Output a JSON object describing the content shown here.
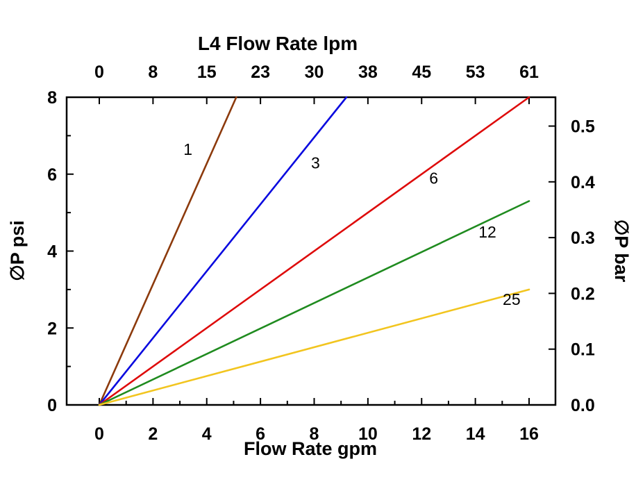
{
  "chart_data": {
    "type": "line",
    "title": "L4  Flow Rate lpm",
    "xlabel": "Flow Rate gpm",
    "ylabel_left": "∅P psi",
    "ylabel_right": "∅P bar",
    "x_unit_bottom": "gpm",
    "x_unit_top": "lpm",
    "xlim": [
      0,
      16
    ],
    "ylim_psi": [
      0,
      8
    ],
    "grid": false,
    "bottom_ticks_gpm": [
      0,
      2,
      4,
      6,
      8,
      10,
      12,
      14,
      16
    ],
    "bottom_minor_ticks_gpm": [
      1,
      3,
      5,
      7,
      9,
      11,
      13,
      15
    ],
    "top_ticks_lpm": [
      {
        "label": "0",
        "gpm": 0
      },
      {
        "label": "8",
        "gpm": 2
      },
      {
        "label": "15",
        "gpm": 4
      },
      {
        "label": "23",
        "gpm": 6
      },
      {
        "label": "30",
        "gpm": 8
      },
      {
        "label": "38",
        "gpm": 10
      },
      {
        "label": "45",
        "gpm": 12
      },
      {
        "label": "53",
        "gpm": 14
      },
      {
        "label": "61",
        "gpm": 16
      }
    ],
    "left_ticks_psi": [
      0,
      2,
      4,
      6,
      8
    ],
    "left_minor_ticks_psi": [
      1,
      3,
      5,
      7
    ],
    "right_ticks_bar": [
      {
        "label": "0.0",
        "psi": 0
      },
      {
        "label": "0.1",
        "psi": 1.45
      },
      {
        "label": "0.2",
        "psi": 2.9
      },
      {
        "label": "0.3",
        "psi": 4.35
      },
      {
        "label": "0.4",
        "psi": 5.8
      },
      {
        "label": "0.5",
        "psi": 7.25
      }
    ],
    "series": [
      {
        "name": "1",
        "color": "#8C3A0C",
        "points": [
          [
            0,
            0
          ],
          [
            5.1,
            8
          ]
        ],
        "label_at": [
          3.3,
          6.5
        ]
      },
      {
        "name": "3",
        "color": "#0A0ADF",
        "points": [
          [
            0,
            0
          ],
          [
            9.2,
            8
          ]
        ],
        "label_at": [
          8.05,
          6.15
        ]
      },
      {
        "name": "6",
        "color": "#DE0A0A",
        "points": [
          [
            0,
            0
          ],
          [
            16,
            8
          ]
        ],
        "label_at": [
          12.45,
          5.75
        ]
      },
      {
        "name": "12",
        "color": "#1F8B1F",
        "points": [
          [
            0,
            0
          ],
          [
            16,
            5.3
          ]
        ],
        "label_at": [
          14.45,
          4.35
        ]
      },
      {
        "name": "25",
        "color": "#F2C51F",
        "points": [
          [
            0,
            0
          ],
          [
            16,
            3.0
          ]
        ],
        "label_at": [
          15.35,
          2.6
        ]
      }
    ]
  }
}
